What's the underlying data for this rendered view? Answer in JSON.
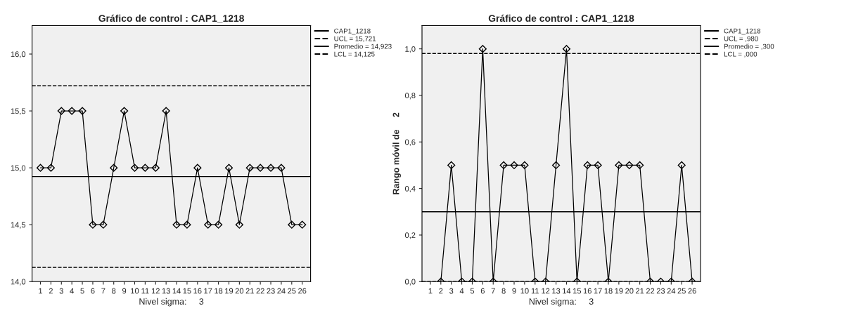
{
  "chart_data": [
    {
      "type": "line",
      "title": "Gráfico de control : CAP1_1218",
      "xlabel": "Nivel sigma:     3",
      "categories": [
        "1",
        "2",
        "3",
        "4",
        "5",
        "6",
        "7",
        "8",
        "9",
        "10",
        "11",
        "12",
        "13",
        "14",
        "15",
        "16",
        "17",
        "18",
        "19",
        "20",
        "21",
        "22",
        "23",
        "24",
        "25",
        "26"
      ],
      "series": [
        {
          "name": "CAP1_1218",
          "color": "#000000",
          "values": [
            15.0,
            15.0,
            15.5,
            15.5,
            15.5,
            14.5,
            14.5,
            15.0,
            15.5,
            15.0,
            15.0,
            15.0,
            15.5,
            14.5,
            14.5,
            15.0,
            14.5,
            14.5,
            15.0,
            14.5,
            15.0,
            15.0,
            15.0,
            15.0,
            14.5,
            14.5
          ]
        }
      ],
      "ylim": [
        14.0,
        16.25
      ],
      "yticks": [
        {
          "value": 14.0,
          "label": "14,0"
        },
        {
          "value": 14.5,
          "label": "14,5"
        },
        {
          "value": 15.0,
          "label": "15,0"
        },
        {
          "value": 15.5,
          "label": "15,5"
        },
        {
          "value": 16.0,
          "label": "16,0"
        }
      ],
      "ref_lines": [
        {
          "axis": "y",
          "value": 15.721,
          "label": "UCL = 15,721",
          "line_style": "dashed",
          "color": "#000000"
        },
        {
          "axis": "y",
          "value": 14.923,
          "label": "Promedio = 14,923",
          "line_style": "solid",
          "color": "#000000"
        },
        {
          "axis": "y",
          "value": 14.125,
          "label": "LCL = 14,125",
          "line_style": "dashed",
          "color": "#000000"
        }
      ],
      "marker": "diamond",
      "line_style": "solid",
      "legend": "right",
      "grid": false
    },
    {
      "type": "line",
      "title": "Gráfico de control : CAP1_1218",
      "xlabel": "Nivel sigma:     3",
      "ylabel": "Rango móvil de     2",
      "categories": [
        "1",
        "2",
        "3",
        "4",
        "5",
        "6",
        "7",
        "8",
        "9",
        "10",
        "11",
        "12",
        "13",
        "14",
        "15",
        "16",
        "17",
        "18",
        "19",
        "20",
        "21",
        "22",
        "23",
        "24",
        "25",
        "26"
      ],
      "series": [
        {
          "name": "CAP1_1218",
          "color": "#000000",
          "values": [
            null,
            0.0,
            0.5,
            0.0,
            0.0,
            1.0,
            0.0,
            0.5,
            0.5,
            0.5,
            0.0,
            0.0,
            0.5,
            1.0,
            0.0,
            0.5,
            0.5,
            0.0,
            0.5,
            0.5,
            0.5,
            0.0,
            0.0,
            0.0,
            0.5,
            0.0
          ]
        }
      ],
      "ylim": [
        0.0,
        1.1
      ],
      "yticks": [
        {
          "value": 0.0,
          "label": "0,0"
        },
        {
          "value": 0.2,
          "label": "0,2"
        },
        {
          "value": 0.4,
          "label": "0,4"
        },
        {
          "value": 0.6,
          "label": "0,6"
        },
        {
          "value": 0.8,
          "label": "0,8"
        },
        {
          "value": 1.0,
          "label": "1,0"
        }
      ],
      "ref_lines": [
        {
          "axis": "y",
          "value": 0.98,
          "label": "UCL = ,980",
          "line_style": "dashed",
          "color": "#000000"
        },
        {
          "axis": "y",
          "value": 0.3,
          "label": "Promedio = ,300",
          "line_style": "solid",
          "color": "#000000"
        },
        {
          "axis": "y",
          "value": 0.0,
          "label": "LCL = ,000",
          "line_style": "dashed",
          "color": "#000000"
        }
      ],
      "marker": "diamond",
      "line_style": "solid",
      "legend": "right",
      "grid": false
    }
  ]
}
